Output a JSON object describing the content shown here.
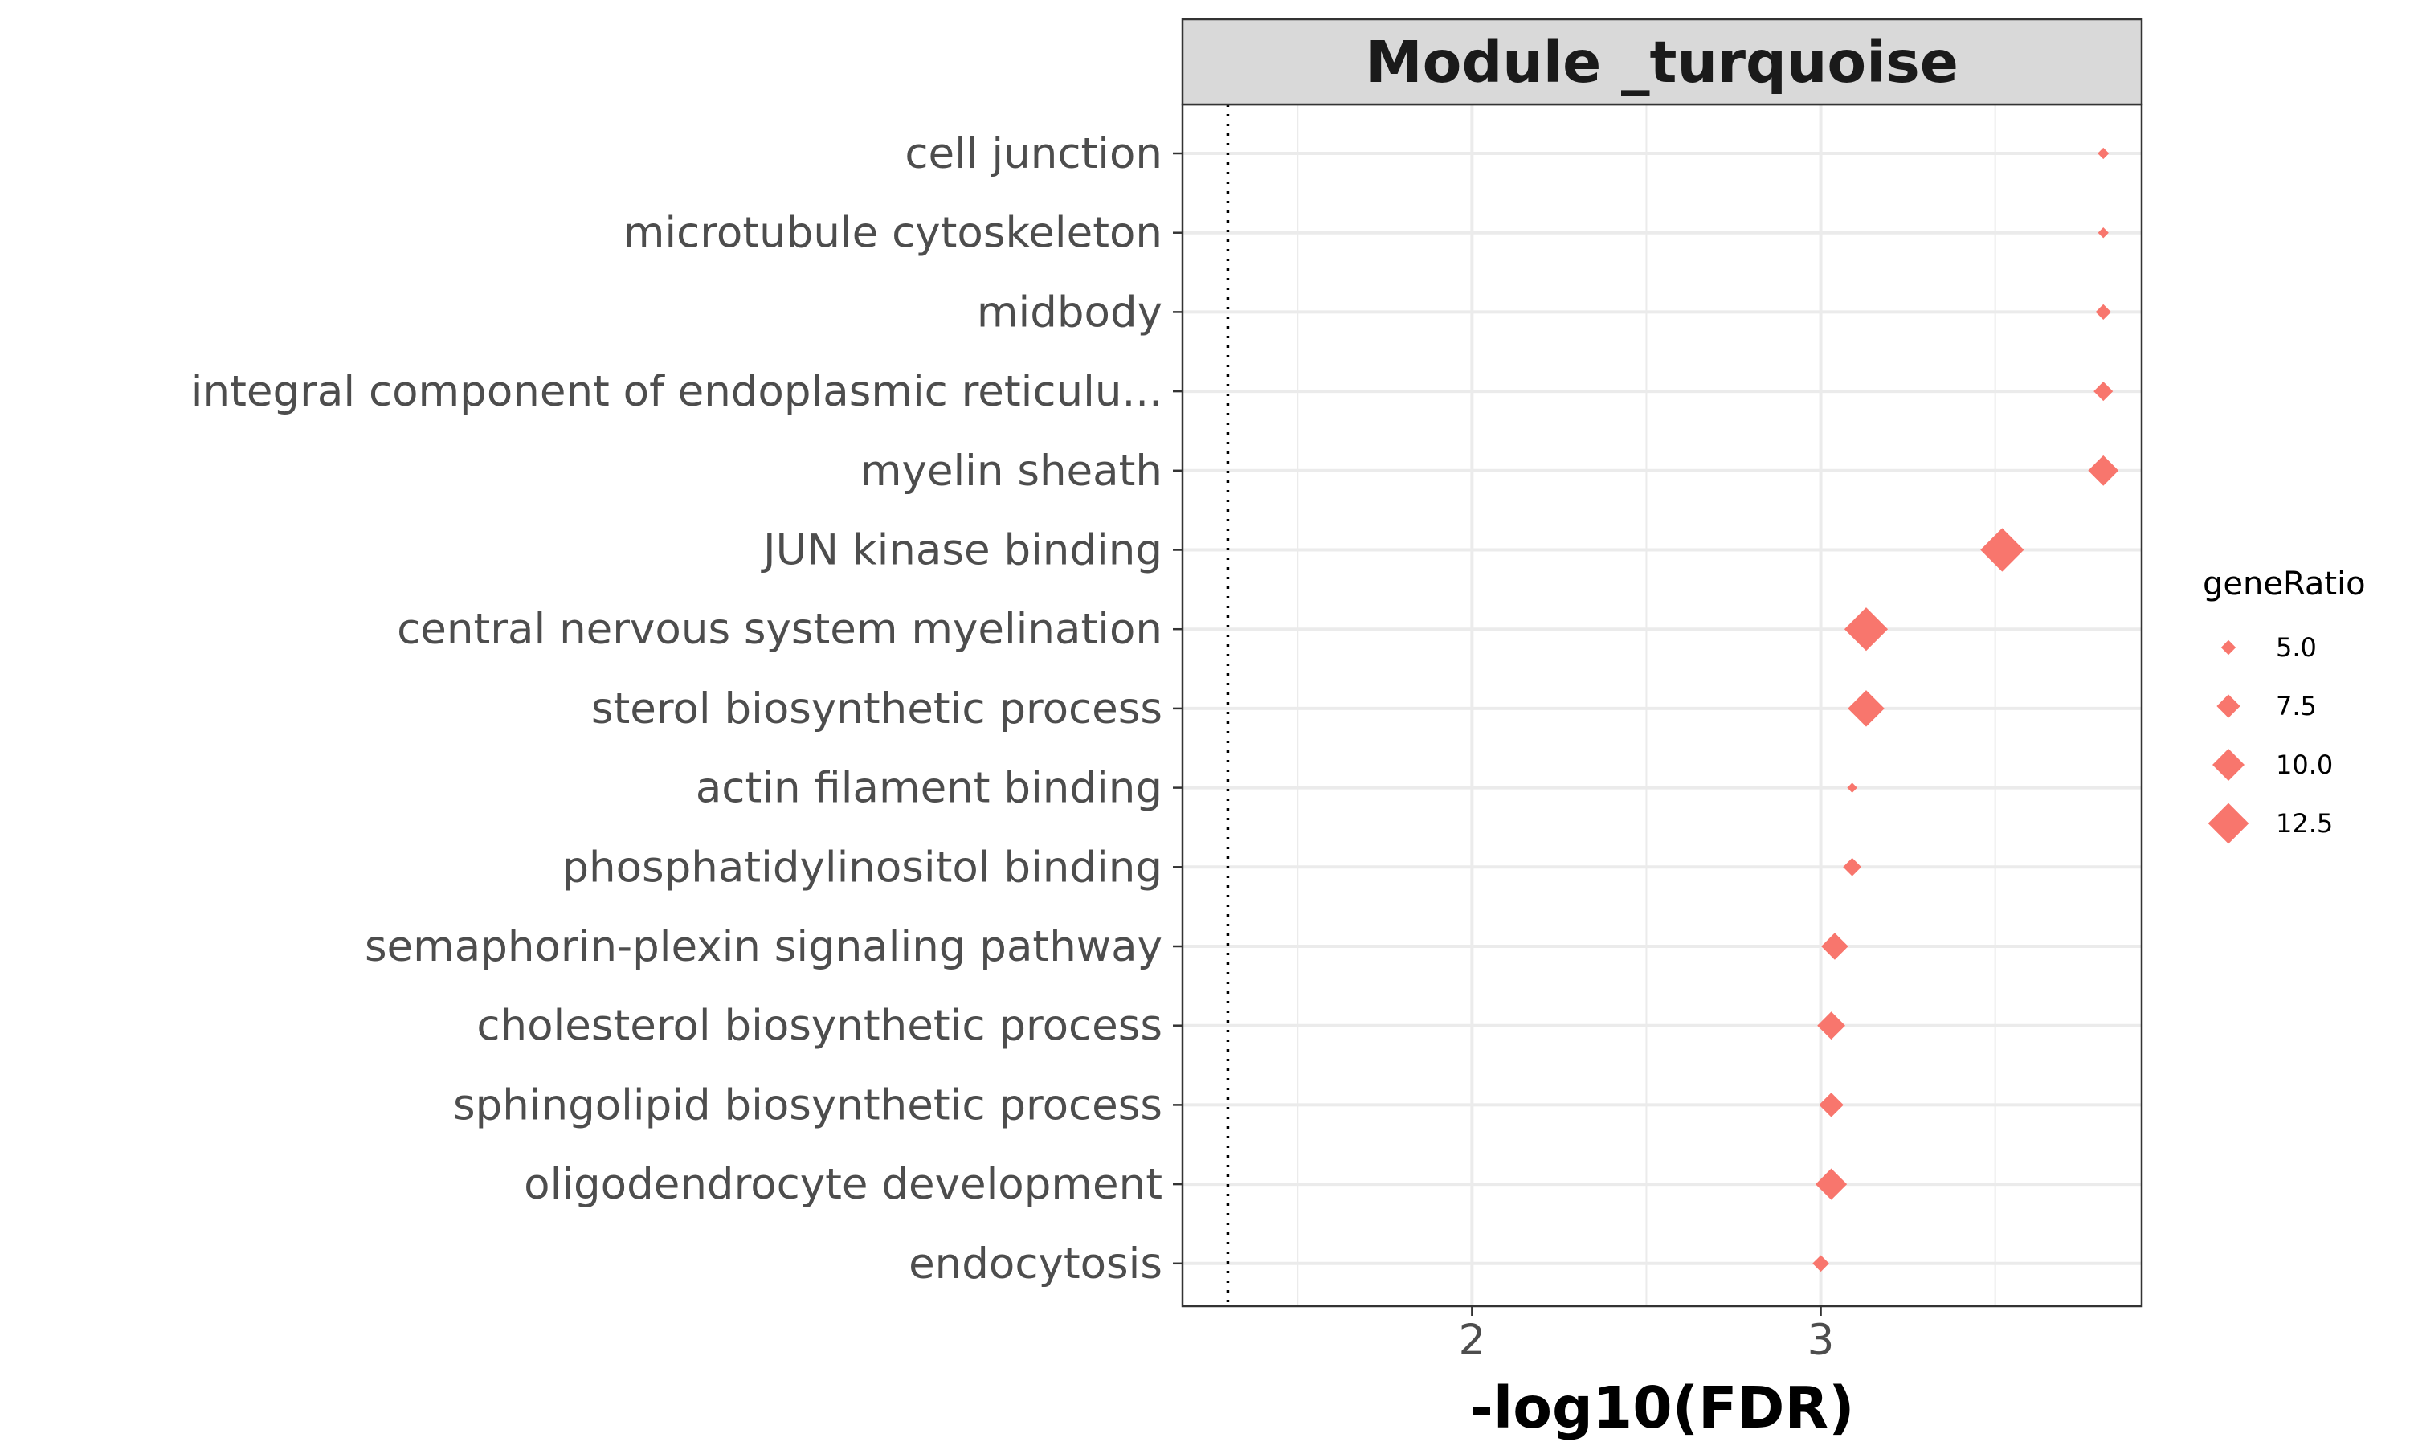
{
  "chart_data": {
    "type": "scatter",
    "title": "Module _turquoise",
    "xlabel": "-log10(FDR)",
    "ylabel": "",
    "xlim": [
      1.17,
      3.92
    ],
    "xticks": [
      2,
      3
    ],
    "xtick_labels": [
      "2",
      "3"
    ],
    "threshold_line": 1.3,
    "grid": true,
    "marker": "diamond",
    "color": "#F8766D",
    "categories": [
      "cell junction",
      "microtubule cytoskeleton",
      "midbody",
      "integral component of endoplasmic reticulu...",
      "myelin sheath",
      "JUN kinase binding",
      "central nervous system myelination",
      "sterol biosynthetic process",
      "actin filament binding",
      "phosphatidylinositol binding",
      "semaphorin-plexin signaling pathway",
      "cholesterol biosynthetic process",
      "sphingolipid biosynthetic process",
      "oligodendrocyte development",
      "endocytosis"
    ],
    "x": [
      3.81,
      3.81,
      3.81,
      3.81,
      3.81,
      3.52,
      3.13,
      3.13,
      3.09,
      3.09,
      3.04,
      3.03,
      3.03,
      3.03,
      3.0
    ],
    "geneRatio": [
      4.0,
      3.8,
      5.2,
      6.3,
      9.5,
      13.3,
      13.3,
      11.3,
      3.6,
      6.0,
      8.5,
      8.8,
      7.8,
      9.8,
      5.5
    ],
    "legend": {
      "title": "geneRatio",
      "position": "right",
      "values": [
        5.0,
        7.5,
        10.0,
        12.5
      ],
      "labels": [
        "5.0",
        "7.5",
        "10.0",
        "12.5"
      ]
    }
  }
}
